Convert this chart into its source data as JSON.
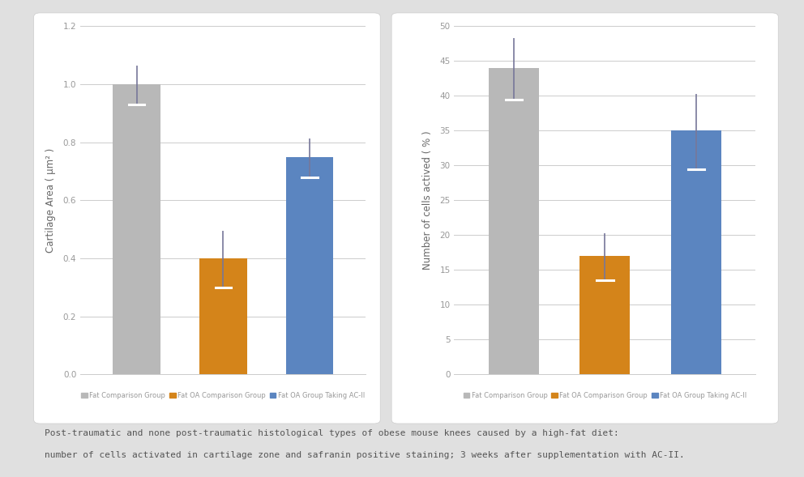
{
  "chart1": {
    "ylabel": "Cartilage Area ( μm² )",
    "ylim": [
      0,
      1.2
    ],
    "yticks": [
      0,
      0.2,
      0.4,
      0.6,
      0.8,
      1.0,
      1.2
    ],
    "values": [
      1.0,
      0.4,
      0.75
    ],
    "errors": [
      0.07,
      0.1,
      0.07
    ],
    "bar_colors": [
      "#b8b8b8",
      "#d4841a",
      "#5b85c0"
    ],
    "bar_width": 0.55
  },
  "chart2": {
    "ylabel": "Number of cells actived ( % )",
    "ylim": [
      0,
      50
    ],
    "yticks": [
      0,
      5,
      10,
      15,
      20,
      25,
      30,
      35,
      40,
      45,
      50
    ],
    "values": [
      44,
      17,
      35
    ],
    "errors": [
      4.5,
      3.5,
      5.5
    ],
    "bar_colors": [
      "#b8b8b8",
      "#d4841a",
      "#5b85c0"
    ],
    "bar_width": 0.55
  },
  "legend_labels": [
    "Fat Comparison Group",
    "Fat OA Comparison Group",
    "Fat OA Group Taking AC-II"
  ],
  "legend_colors": [
    "#b8b8b8",
    "#d4841a",
    "#5b85c0"
  ],
  "caption_line1": "Post-traumatic and none post-traumatic histological types of obese mouse knees caused by a high-fat diet:",
  "caption_line2": "number of cells activated in cartilage zone and safranin positive staining; 3 weeks after supplementation with AC-II.",
  "bg_color": "#e0e0e0",
  "panel_bg": "#ffffff",
  "grid_color": "#cccccc",
  "tick_label_color": "#999999",
  "ylabel_color": "#666666",
  "caption_color": "#555555",
  "figsize": [
    9.92,
    5.89
  ],
  "dpi": 100
}
